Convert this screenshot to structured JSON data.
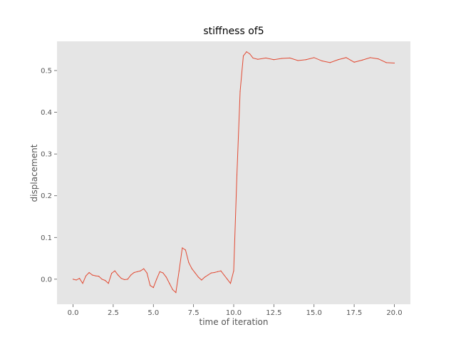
{
  "chart_data": {
    "type": "line",
    "title": "stiffness of5",
    "xlabel": "time of iteration",
    "ylabel": "displacement",
    "xlim": [
      -1.0,
      21.0
    ],
    "ylim": [
      -0.06,
      0.57
    ],
    "xticks": [
      "0.0",
      "2.5",
      "5.0",
      "7.5",
      "10.0",
      "12.5",
      "15.0",
      "17.5",
      "20.0"
    ],
    "xtick_values": [
      0,
      2.5,
      5,
      7.5,
      10,
      12.5,
      15,
      17.5,
      20
    ],
    "yticks": [
      "0.0",
      "0.1",
      "0.2",
      "0.3",
      "0.4",
      "0.5"
    ],
    "ytick_values": [
      0,
      0.1,
      0.2,
      0.3,
      0.4,
      0.5
    ],
    "grid": false,
    "background": "#e5e5e5",
    "line_color": "#e24a33",
    "series": [
      {
        "x": [
          0,
          0.2,
          0.4,
          0.6,
          0.8,
          1.0,
          1.2,
          1.4,
          1.6,
          1.8,
          2.0,
          2.2,
          2.4,
          2.6,
          2.8,
          3.0,
          3.2,
          3.4,
          3.6,
          3.8,
          4.0,
          4.2,
          4.4,
          4.6,
          4.8,
          5.0,
          5.2,
          5.4,
          5.6,
          5.8,
          6.0,
          6.2,
          6.4,
          6.6,
          6.8,
          7.0,
          7.2,
          7.4,
          7.6,
          7.8,
          8.0,
          8.2,
          8.4,
          8.6,
          8.8,
          9.0,
          9.2,
          9.4,
          9.6,
          9.8,
          10.0,
          10.2,
          10.4,
          10.6,
          10.8,
          11.0,
          11.2,
          11.5,
          12.0,
          12.5,
          13.0,
          13.5,
          14.0,
          14.5,
          15.0,
          15.5,
          16.0,
          16.5,
          17.0,
          17.5,
          18.0,
          18.5,
          19.0,
          19.5,
          20.0
        ],
        "y": [
          0.0,
          -0.002,
          0.002,
          -0.01,
          0.008,
          0.016,
          0.01,
          0.008,
          0.007,
          0.0,
          -0.003,
          -0.01,
          0.014,
          0.02,
          0.01,
          0.002,
          -0.001,
          0.0,
          0.01,
          0.016,
          0.018,
          0.02,
          0.025,
          0.015,
          -0.015,
          -0.02,
          0.0,
          0.018,
          0.015,
          0.005,
          -0.01,
          -0.025,
          -0.032,
          0.02,
          0.075,
          0.07,
          0.04,
          0.025,
          0.015,
          0.005,
          -0.002,
          0.005,
          0.01,
          0.015,
          0.016,
          0.018,
          0.02,
          0.01,
          0.0,
          -0.01,
          0.02,
          0.25,
          0.45,
          0.535,
          0.545,
          0.54,
          0.53,
          0.527,
          0.53,
          0.526,
          0.529,
          0.53,
          0.524,
          0.526,
          0.531,
          0.523,
          0.519,
          0.526,
          0.531,
          0.52,
          0.525,
          0.531,
          0.528,
          0.519,
          0.518
        ]
      }
    ]
  }
}
